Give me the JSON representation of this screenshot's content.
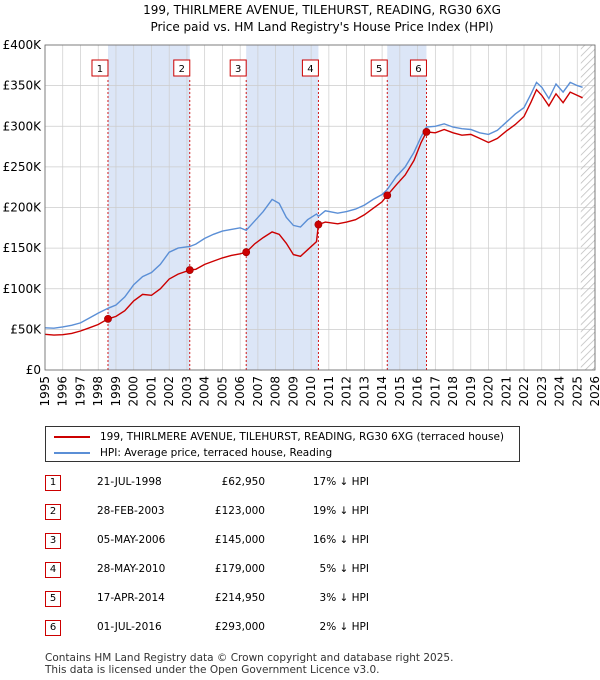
{
  "colors": {
    "price_line": "#cc0000",
    "hpi_line": "#5b8fd6",
    "shade": "#dce6f7",
    "grid": "#cccccc",
    "marker_border": "#cc0000",
    "vline": "#cc0000"
  },
  "chart_data": {
    "type": "line",
    "title": "199, THIRLMERE AVENUE, TILEHURST, READING, RG30 6XG",
    "subtitle": "Price paid vs. HM Land Registry's House Price Index (HPI)",
    "xlim": [
      1995,
      2026
    ],
    "ylim": [
      0,
      400000
    ],
    "x_ticks": [
      "1995",
      "1996",
      "1997",
      "1998",
      "1999",
      "2000",
      "2001",
      "2002",
      "2003",
      "2004",
      "2005",
      "2006",
      "2007",
      "2008",
      "2009",
      "2010",
      "2011",
      "2012",
      "2013",
      "2014",
      "2015",
      "2016",
      "2017",
      "2018",
      "2019",
      "2020",
      "2021",
      "2022",
      "2023",
      "2024",
      "2025",
      "2026"
    ],
    "y_ticks": [
      {
        "value": 0,
        "label": "£0"
      },
      {
        "value": 50000,
        "label": "£50K"
      },
      {
        "value": 100000,
        "label": "£100K"
      },
      {
        "value": 150000,
        "label": "£150K"
      },
      {
        "value": 200000,
        "label": "£200K"
      },
      {
        "value": 250000,
        "label": "£250K"
      },
      {
        "value": 300000,
        "label": "£300K"
      },
      {
        "value": 350000,
        "label": "£350K"
      },
      {
        "value": 400000,
        "label": "£400K"
      }
    ],
    "shaded_ranges": [
      [
        1998.55,
        2003.16
      ],
      [
        2006.34,
        2010.41
      ],
      [
        2014.29,
        2016.5
      ]
    ],
    "hatched_from": 2025.2,
    "series": [
      {
        "name": "199, THIRLMERE AVENUE, TILEHURST, READING, RG30 6XG (terraced house)",
        "x": [
          1995.0,
          1995.5,
          1996.0,
          1996.5,
          1997.0,
          1997.5,
          1998.0,
          1998.55,
          1999.0,
          1999.5,
          2000.0,
          2000.5,
          2001.0,
          2001.5,
          2002.0,
          2002.5,
          2003.16,
          2003.5,
          2004.0,
          2004.5,
          2005.0,
          2005.5,
          2006.0,
          2006.34,
          2006.8,
          2007.3,
          2007.8,
          2008.2,
          2008.6,
          2009.0,
          2009.4,
          2009.8,
          2010.3,
          2010.41,
          2010.8,
          2011.5,
          2012.0,
          2012.5,
          2013.0,
          2013.5,
          2014.0,
          2014.29,
          2014.8,
          2015.3,
          2015.8,
          2016.2,
          2016.5,
          2017.0,
          2017.5,
          2018.0,
          2018.5,
          2019.0,
          2019.5,
          2020.0,
          2020.5,
          2021.0,
          2021.5,
          2022.0,
          2022.4,
          2022.7,
          2023.0,
          2023.4,
          2023.8,
          2024.2,
          2024.6,
          2025.0,
          2025.3
        ],
        "values": [
          44000,
          43000,
          43500,
          45000,
          48000,
          52000,
          56000,
          62950,
          66000,
          73000,
          85000,
          93000,
          92000,
          100000,
          112000,
          118000,
          123000,
          124000,
          130000,
          134000,
          138000,
          141000,
          143000,
          145000,
          155000,
          163000,
          170000,
          167000,
          156000,
          142000,
          140000,
          148000,
          158000,
          179000,
          182000,
          180000,
          182000,
          185000,
          191000,
          199000,
          207000,
          214950,
          228000,
          240000,
          258000,
          280000,
          293000,
          292000,
          296000,
          292000,
          289000,
          290000,
          285000,
          280000,
          285000,
          294000,
          302000,
          312000,
          330000,
          345000,
          338000,
          325000,
          340000,
          329000,
          342000,
          338000,
          335000
        ]
      },
      {
        "name": "HPI: Average price, terraced house, Reading",
        "x": [
          1995.0,
          1995.5,
          1996.0,
          1996.5,
          1997.0,
          1997.5,
          1998.0,
          1998.55,
          1999.0,
          1999.5,
          2000.0,
          2000.5,
          2001.0,
          2001.5,
          2002.0,
          2002.5,
          2003.16,
          2003.5,
          2004.0,
          2004.5,
          2005.0,
          2005.5,
          2006.0,
          2006.34,
          2006.8,
          2007.3,
          2007.8,
          2008.2,
          2008.6,
          2009.0,
          2009.4,
          2009.8,
          2010.3,
          2010.41,
          2010.8,
          2011.5,
          2012.0,
          2012.5,
          2013.0,
          2013.5,
          2014.0,
          2014.29,
          2014.8,
          2015.3,
          2015.8,
          2016.2,
          2016.5,
          2017.0,
          2017.5,
          2018.0,
          2018.5,
          2019.0,
          2019.5,
          2020.0,
          2020.5,
          2021.0,
          2021.5,
          2022.0,
          2022.4,
          2022.7,
          2023.0,
          2023.4,
          2023.8,
          2024.2,
          2024.6,
          2025.0,
          2025.3
        ],
        "values": [
          52000,
          51500,
          53000,
          55000,
          58000,
          64000,
          70000,
          76000,
          80000,
          90000,
          105000,
          115000,
          120000,
          130000,
          145000,
          150000,
          152000,
          155000,
          162000,
          167000,
          171000,
          173000,
          175000,
          172000,
          183000,
          195000,
          210000,
          205000,
          188000,
          178000,
          176000,
          185000,
          192000,
          189000,
          196000,
          193000,
          195000,
          198000,
          203000,
          210000,
          216000,
          222000,
          238000,
          250000,
          268000,
          287000,
          299000,
          300000,
          303000,
          299000,
          297000,
          296000,
          292000,
          290000,
          295000,
          305000,
          315000,
          323000,
          340000,
          354000,
          348000,
          334000,
          352000,
          342000,
          354000,
          350000,
          348000
        ]
      }
    ],
    "transactions": [
      {
        "label": "1",
        "x": 1998.55,
        "value": 62950
      },
      {
        "label": "2",
        "x": 2003.16,
        "value": 123000
      },
      {
        "label": "3",
        "x": 2006.34,
        "value": 145000
      },
      {
        "label": "4",
        "x": 2010.41,
        "value": 179000
      },
      {
        "label": "5",
        "x": 2014.29,
        "value": 214950
      },
      {
        "label": "6",
        "x": 2016.5,
        "value": 293000
      }
    ]
  },
  "legend": {
    "items": [
      {
        "label": "199, THIRLMERE AVENUE, TILEHURST, READING, RG30 6XG (terraced house)",
        "color": "#cc0000"
      },
      {
        "label": "HPI: Average price, terraced house, Reading",
        "color": "#5b8fd6"
      }
    ]
  },
  "table": {
    "rows": [
      {
        "num": "1",
        "date": "21-JUL-1998",
        "price": "£62,950",
        "hpi": "17% ↓ HPI"
      },
      {
        "num": "2",
        "date": "28-FEB-2003",
        "price": "£123,000",
        "hpi": "19% ↓ HPI"
      },
      {
        "num": "3",
        "date": "05-MAY-2006",
        "price": "£145,000",
        "hpi": "16% ↓ HPI"
      },
      {
        "num": "4",
        "date": "28-MAY-2010",
        "price": "£179,000",
        "hpi": "5% ↓ HPI"
      },
      {
        "num": "5",
        "date": "17-APR-2014",
        "price": "£214,950",
        "hpi": "3% ↓ HPI"
      },
      {
        "num": "6",
        "date": "01-JUL-2016",
        "price": "£293,000",
        "hpi": "2% ↓ HPI"
      }
    ]
  },
  "footer": {
    "line1": "Contains HM Land Registry data © Crown copyright and database right 2025.",
    "line2": "This data is licensed under the Open Government Licence v3.0."
  }
}
